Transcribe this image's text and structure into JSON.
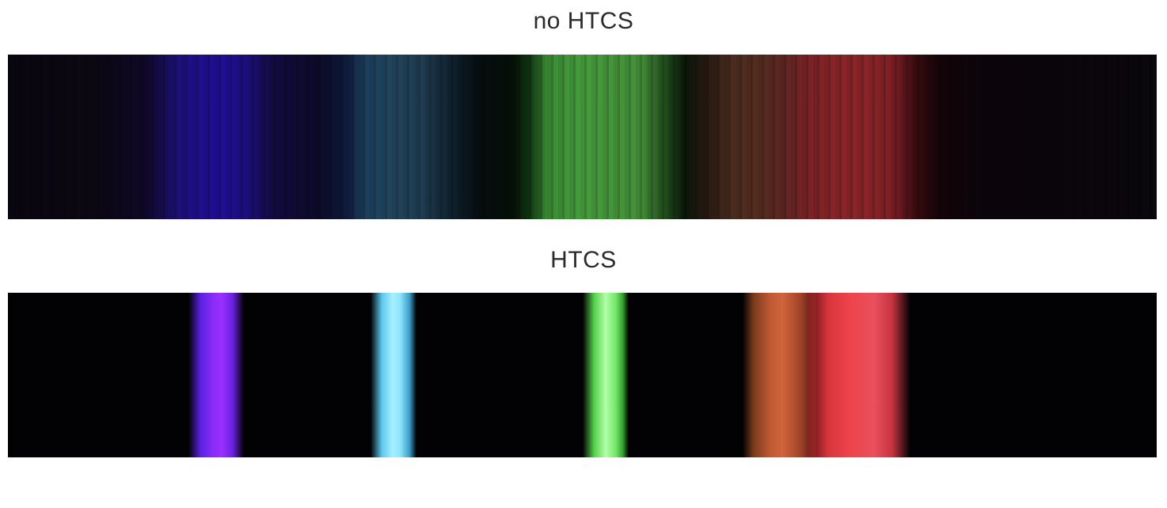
{
  "figure": {
    "top_panel_title": "no HTCS",
    "bottom_panel_title": "HTCS"
  },
  "colors": {
    "background": "#ffffff",
    "strip_background": "#050308",
    "violet": "#9a30ff",
    "cyan": "#a6f0ff",
    "green": "#b2ffa8",
    "orange": "#d0643c",
    "red": "#f0444c"
  }
}
